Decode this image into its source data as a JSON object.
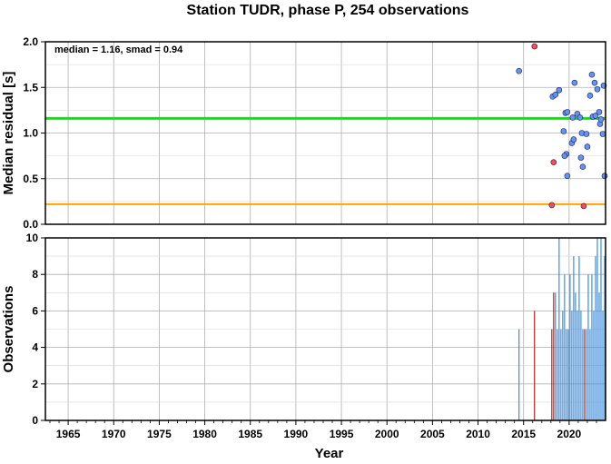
{
  "chart_data": [
    {
      "type": "scatter",
      "title": "Station TUDR, phase P, 254 observations",
      "xlabel": "",
      "ylabel": "Median residual [s]",
      "annotation": "median = 1.16, smad = 0.94",
      "xlim": [
        1962.5,
        2024.0
      ],
      "ylim": [
        0.0,
        2.0
      ],
      "xticks": [
        1965,
        1970,
        1975,
        1980,
        1985,
        1990,
        1995,
        2000,
        2005,
        2010,
        2015,
        2020
      ],
      "yticks": [
        "0.0",
        "0.5",
        "1.0",
        "1.5",
        "2.0"
      ],
      "grid": true,
      "hlines": [
        {
          "y": 1.16,
          "color": "#00ee00"
        },
        {
          "y": 0.22,
          "color": "#ffa500"
        }
      ],
      "colors": {
        "normal": "#6495ed",
        "outlier": "#ff4c4c"
      },
      "points": [
        {
          "x": 2014.5,
          "y": 1.68,
          "c": "normal"
        },
        {
          "x": 2016.2,
          "y": 1.95,
          "c": "outlier"
        },
        {
          "x": 2018.2,
          "y": 1.4,
          "c": "normal"
        },
        {
          "x": 2018.5,
          "y": 1.42,
          "c": "normal"
        },
        {
          "x": 2018.9,
          "y": 1.47,
          "c": "normal"
        },
        {
          "x": 2018.3,
          "y": 0.68,
          "c": "outlier"
        },
        {
          "x": 2018.1,
          "y": 0.21,
          "c": "outlier"
        },
        {
          "x": 2019.4,
          "y": 1.02,
          "c": "normal"
        },
        {
          "x": 2019.6,
          "y": 1.22,
          "c": "normal"
        },
        {
          "x": 2019.8,
          "y": 1.23,
          "c": "normal"
        },
        {
          "x": 2019.7,
          "y": 0.77,
          "c": "normal"
        },
        {
          "x": 2019.5,
          "y": 0.75,
          "c": "normal"
        },
        {
          "x": 2019.8,
          "y": 0.53,
          "c": "normal"
        },
        {
          "x": 2020.3,
          "y": 0.89,
          "c": "normal"
        },
        {
          "x": 2020.5,
          "y": 0.93,
          "c": "normal"
        },
        {
          "x": 2020.6,
          "y": 1.55,
          "c": "normal"
        },
        {
          "x": 2020.4,
          "y": 1.17,
          "c": "normal"
        },
        {
          "x": 2020.9,
          "y": 1.21,
          "c": "normal"
        },
        {
          "x": 2021.2,
          "y": 1.17,
          "c": "normal"
        },
        {
          "x": 2021.4,
          "y": 1.0,
          "c": "normal"
        },
        {
          "x": 2021.3,
          "y": 0.73,
          "c": "normal"
        },
        {
          "x": 2021.5,
          "y": 0.63,
          "c": "normal"
        },
        {
          "x": 2021.6,
          "y": 0.2,
          "c": "outlier"
        },
        {
          "x": 2021.9,
          "y": 0.99,
          "c": "normal"
        },
        {
          "x": 2022.0,
          "y": 0.85,
          "c": "normal"
        },
        {
          "x": 2022.3,
          "y": 1.41,
          "c": "normal"
        },
        {
          "x": 2022.5,
          "y": 1.64,
          "c": "normal"
        },
        {
          "x": 2022.6,
          "y": 1.18,
          "c": "normal"
        },
        {
          "x": 2022.8,
          "y": 1.55,
          "c": "normal"
        },
        {
          "x": 2022.9,
          "y": 1.19,
          "c": "normal"
        },
        {
          "x": 2023.1,
          "y": 1.48,
          "c": "normal"
        },
        {
          "x": 2023.3,
          "y": 1.23,
          "c": "normal"
        },
        {
          "x": 2023.4,
          "y": 1.1,
          "c": "normal"
        },
        {
          "x": 2023.5,
          "y": 1.15,
          "c": "normal"
        },
        {
          "x": 2023.7,
          "y": 0.99,
          "c": "normal"
        },
        {
          "x": 2023.8,
          "y": 1.52,
          "c": "normal"
        },
        {
          "x": 2023.9,
          "y": 0.53,
          "c": "normal"
        }
      ]
    },
    {
      "type": "bar",
      "title": "",
      "xlabel": "Year",
      "ylabel": "Observations",
      "xlim": [
        1962.5,
        2024.0
      ],
      "ylim": [
        0,
        10
      ],
      "xticks": [
        1965,
        1970,
        1975,
        1980,
        1985,
        1990,
        1995,
        2000,
        2005,
        2010,
        2015,
        2020
      ],
      "yticks": [
        0,
        2,
        4,
        6,
        8,
        10
      ],
      "grid": true,
      "colors": {
        "normal": "#3a8fe0",
        "outlier": "#b22222"
      },
      "bars": [
        {
          "x": 2014.5,
          "y": 5,
          "c": "normal"
        },
        {
          "x": 2016.2,
          "y": 6,
          "c": "outlier"
        },
        {
          "x": 2018.1,
          "y": 5,
          "c": "outlier"
        },
        {
          "x": 2018.3,
          "y": 7,
          "c": "outlier"
        },
        {
          "x": 2018.5,
          "y": 7,
          "c": "normal"
        },
        {
          "x": 2018.7,
          "y": 5,
          "c": "normal"
        },
        {
          "x": 2018.9,
          "y": 10,
          "c": "normal"
        },
        {
          "x": 2019.1,
          "y": 5,
          "c": "normal"
        },
        {
          "x": 2019.3,
          "y": 6,
          "c": "normal"
        },
        {
          "x": 2019.5,
          "y": 8,
          "c": "normal"
        },
        {
          "x": 2019.7,
          "y": 5,
          "c": "normal"
        },
        {
          "x": 2019.9,
          "y": 5,
          "c": "normal"
        },
        {
          "x": 2020.1,
          "y": 8,
          "c": "normal"
        },
        {
          "x": 2020.3,
          "y": 6,
          "c": "normal"
        },
        {
          "x": 2020.5,
          "y": 9,
          "c": "normal"
        },
        {
          "x": 2020.7,
          "y": 7,
          "c": "normal"
        },
        {
          "x": 2020.9,
          "y": 6,
          "c": "normal"
        },
        {
          "x": 2021.1,
          "y": 9,
          "c": "normal"
        },
        {
          "x": 2021.3,
          "y": 6,
          "c": "normal"
        },
        {
          "x": 2021.5,
          "y": 5,
          "c": "normal"
        },
        {
          "x": 2021.7,
          "y": 5,
          "c": "outlier"
        },
        {
          "x": 2021.9,
          "y": 5,
          "c": "normal"
        },
        {
          "x": 2022.1,
          "y": 8,
          "c": "normal"
        },
        {
          "x": 2022.3,
          "y": 5,
          "c": "normal"
        },
        {
          "x": 2022.5,
          "y": 8,
          "c": "normal"
        },
        {
          "x": 2022.7,
          "y": 6,
          "c": "normal"
        },
        {
          "x": 2022.9,
          "y": 9,
          "c": "normal"
        },
        {
          "x": 2023.1,
          "y": 10,
          "c": "normal"
        },
        {
          "x": 2023.3,
          "y": 7,
          "c": "normal"
        },
        {
          "x": 2023.5,
          "y": 10,
          "c": "normal"
        },
        {
          "x": 2023.7,
          "y": 6,
          "c": "normal"
        },
        {
          "x": 2023.9,
          "y": 9,
          "c": "normal"
        }
      ]
    }
  ]
}
